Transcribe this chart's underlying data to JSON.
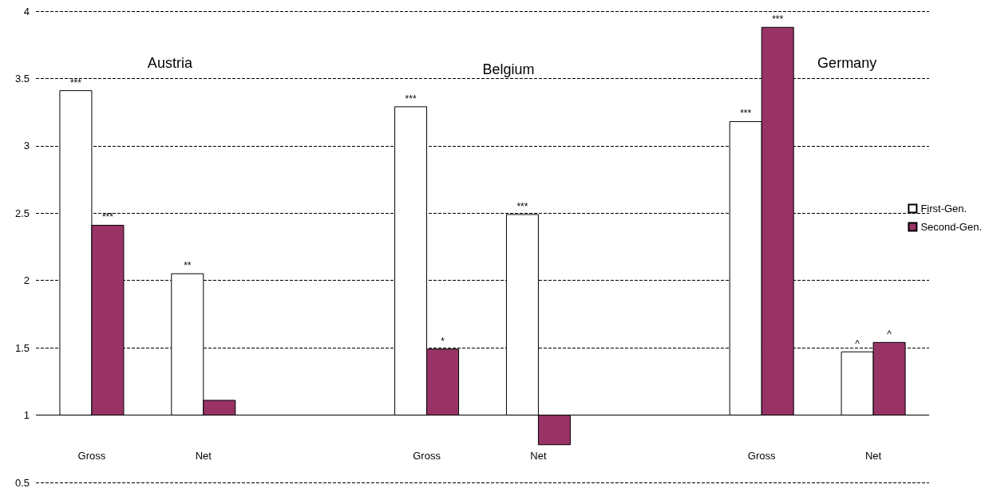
{
  "chart_data": {
    "type": "bar",
    "categories": [
      "Gross",
      "Net",
      null,
      "Gross",
      "Net",
      null,
      "Gross",
      "Net"
    ],
    "series": [
      {
        "name": "First-Gen.",
        "color": "#ffffff",
        "base": [
          1,
          1,
          null,
          1,
          1,
          null,
          1,
          1
        ],
        "values": [
          2.41,
          1.05,
          null,
          2.29,
          1.49,
          null,
          2.18,
          0.47
        ],
        "value_labels": [
          "***",
          "**",
          null,
          "***",
          "***",
          null,
          "***",
          "^"
        ]
      },
      {
        "name": "Second-Gen.",
        "color": "#993366",
        "base": [
          1,
          1,
          null,
          1,
          1,
          null,
          1,
          1
        ],
        "values": [
          1.41,
          0.11,
          null,
          0.49,
          -0.22,
          null,
          2.88,
          0.54
        ],
        "value_labels": [
          "***",
          null,
          null,
          "*",
          null,
          null,
          "***",
          "^"
        ]
      }
    ],
    "ylim": [
      0.5,
      4
    ],
    "yticks": [
      0.5,
      1,
      1.5,
      2,
      2.5,
      3,
      3.5,
      4
    ],
    "grid": "y",
    "legend": "right",
    "ref_lines": [
      {
        "axis": "y",
        "value": 1,
        "color": "#000000"
      }
    ],
    "annotations": [
      "Austria",
      "Belgium",
      "Germany"
    ]
  }
}
